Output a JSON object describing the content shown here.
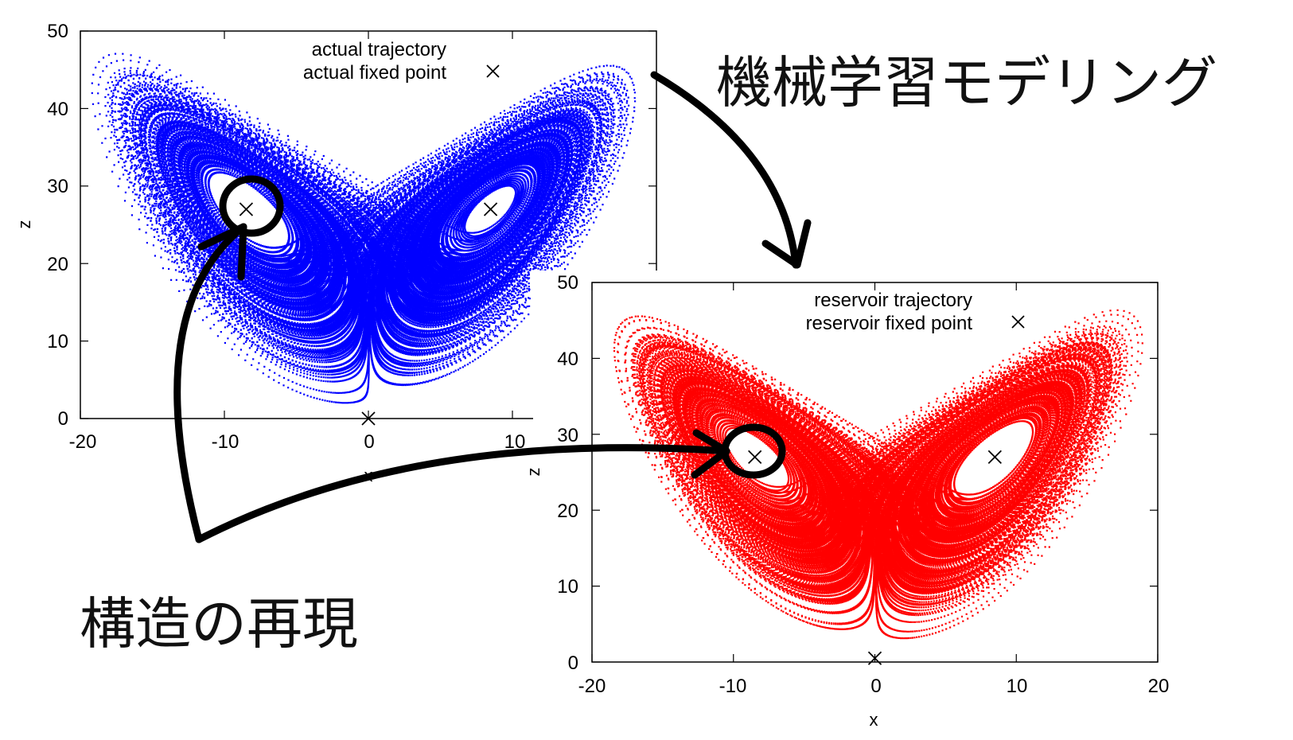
{
  "headline": "機械学習モデリング",
  "caption": "構造の再現",
  "chart_data": [
    {
      "type": "scatter",
      "id": "actual",
      "xlabel": "x",
      "ylabel": "z",
      "xlim": [
        -20,
        20
      ],
      "ylim": [
        0,
        50
      ],
      "x_ticks": [
        "-20",
        "-10",
        "0",
        "10"
      ],
      "y_ticks": [
        "0",
        "10",
        "20",
        "30",
        "40",
        "50"
      ],
      "legend_position": "top-center",
      "series": [
        {
          "name": "actual trajectory",
          "marker": "dot",
          "color": "#0000ff",
          "description_values": "Lorenz attractor butterfly, x from about -19 to 19, z from about 1 to 47"
        },
        {
          "name": "actual fixed point",
          "marker": "x",
          "color": "#000000",
          "points": [
            [
              -8.485,
              27
            ],
            [
              8.485,
              27
            ],
            [
              0,
              0
            ]
          ]
        }
      ]
    },
    {
      "type": "scatter",
      "id": "reservoir",
      "xlabel": "x",
      "ylabel": "z",
      "xlim": [
        -20,
        20
      ],
      "ylim": [
        0,
        50
      ],
      "x_ticks": [
        "-20",
        "-10",
        "0",
        "10",
        "20"
      ],
      "y_ticks": [
        "0",
        "10",
        "20",
        "30",
        "40",
        "50"
      ],
      "legend_position": "top-center",
      "series": [
        {
          "name": "reservoir trajectory",
          "marker": "dot",
          "color": "#ff0000",
          "description_values": "Lorenz attractor butterfly, x from about -19 to 19, z from about 1 to 47"
        },
        {
          "name": "reservoir fixed point",
          "marker": "x",
          "color": "#000000",
          "points": [
            [
              -8.485,
              27
            ],
            [
              8.485,
              27
            ],
            [
              0,
              0.5
            ]
          ]
        }
      ]
    }
  ]
}
